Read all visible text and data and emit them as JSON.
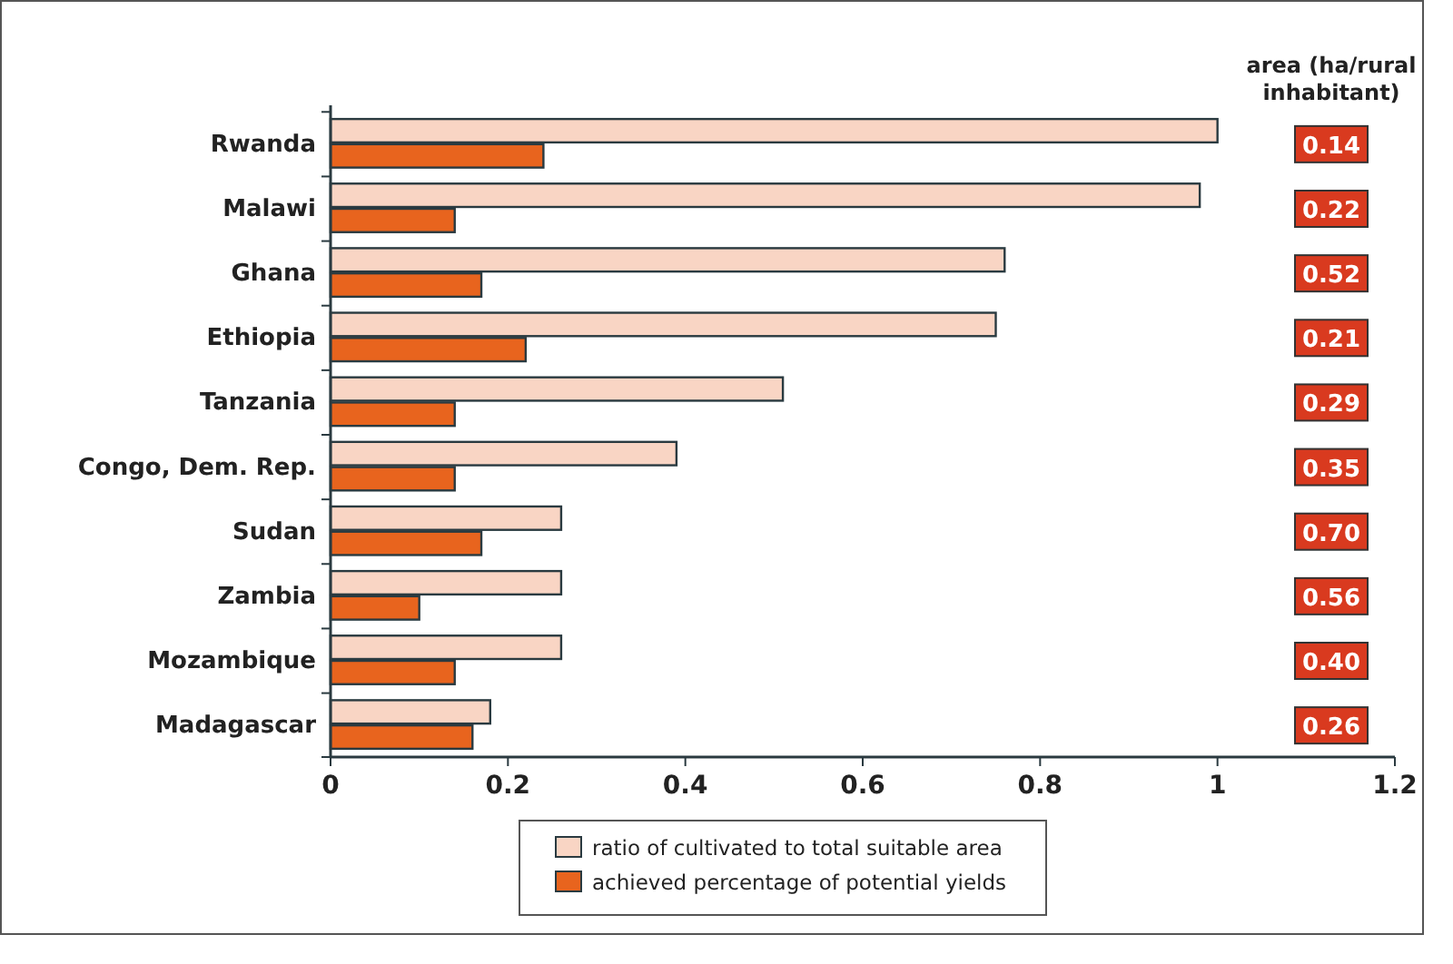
{
  "chart_data": {
    "type": "bar",
    "orientation": "horizontal",
    "categories": [
      "Rwanda",
      "Malawi",
      "Ghana",
      "Ethiopia",
      "Tanzania",
      "Congo, Dem. Rep.",
      "Sudan",
      "Zambia",
      "Mozambique",
      "Madagascar"
    ],
    "series": [
      {
        "name": "ratio of cultivated to total suitable area",
        "color": "#f9d5c4",
        "values": [
          1.0,
          0.98,
          0.76,
          0.75,
          0.51,
          0.39,
          0.26,
          0.26,
          0.26,
          0.18
        ]
      },
      {
        "name": "achieved percentage of potential yields",
        "color": "#e8641e",
        "values": [
          0.24,
          0.14,
          0.17,
          0.22,
          0.14,
          0.14,
          0.17,
          0.1,
          0.14,
          0.16
        ]
      }
    ],
    "xlim": [
      0,
      1.2
    ],
    "xticks": [
      0,
      0.2,
      0.4,
      0.6,
      0.8,
      {
        "value": 1,
        "label": "1"
      },
      1.2
    ],
    "legend": "bottom",
    "grid": false,
    "annotations": [
      "area (ha/rural inhabitant)",
      {
        "text": "0.14",
        "y": "Rwanda"
      },
      {
        "text": "0.22",
        "y": "Malawi"
      },
      {
        "text": "0.52",
        "y": "Ghana"
      },
      {
        "text": "0.21",
        "y": "Ethiopia"
      },
      {
        "text": "0.29",
        "y": "Tanzania"
      },
      {
        "text": "0.35",
        "y": "Congo, Dem. Rep."
      },
      {
        "text": "0.70",
        "y": "Sudan"
      },
      {
        "text": "0.56",
        "y": "Zambia"
      },
      {
        "text": "0.40",
        "y": "Mozambique"
      },
      {
        "text": "0.26",
        "y": "Madagascar"
      }
    ]
  }
}
